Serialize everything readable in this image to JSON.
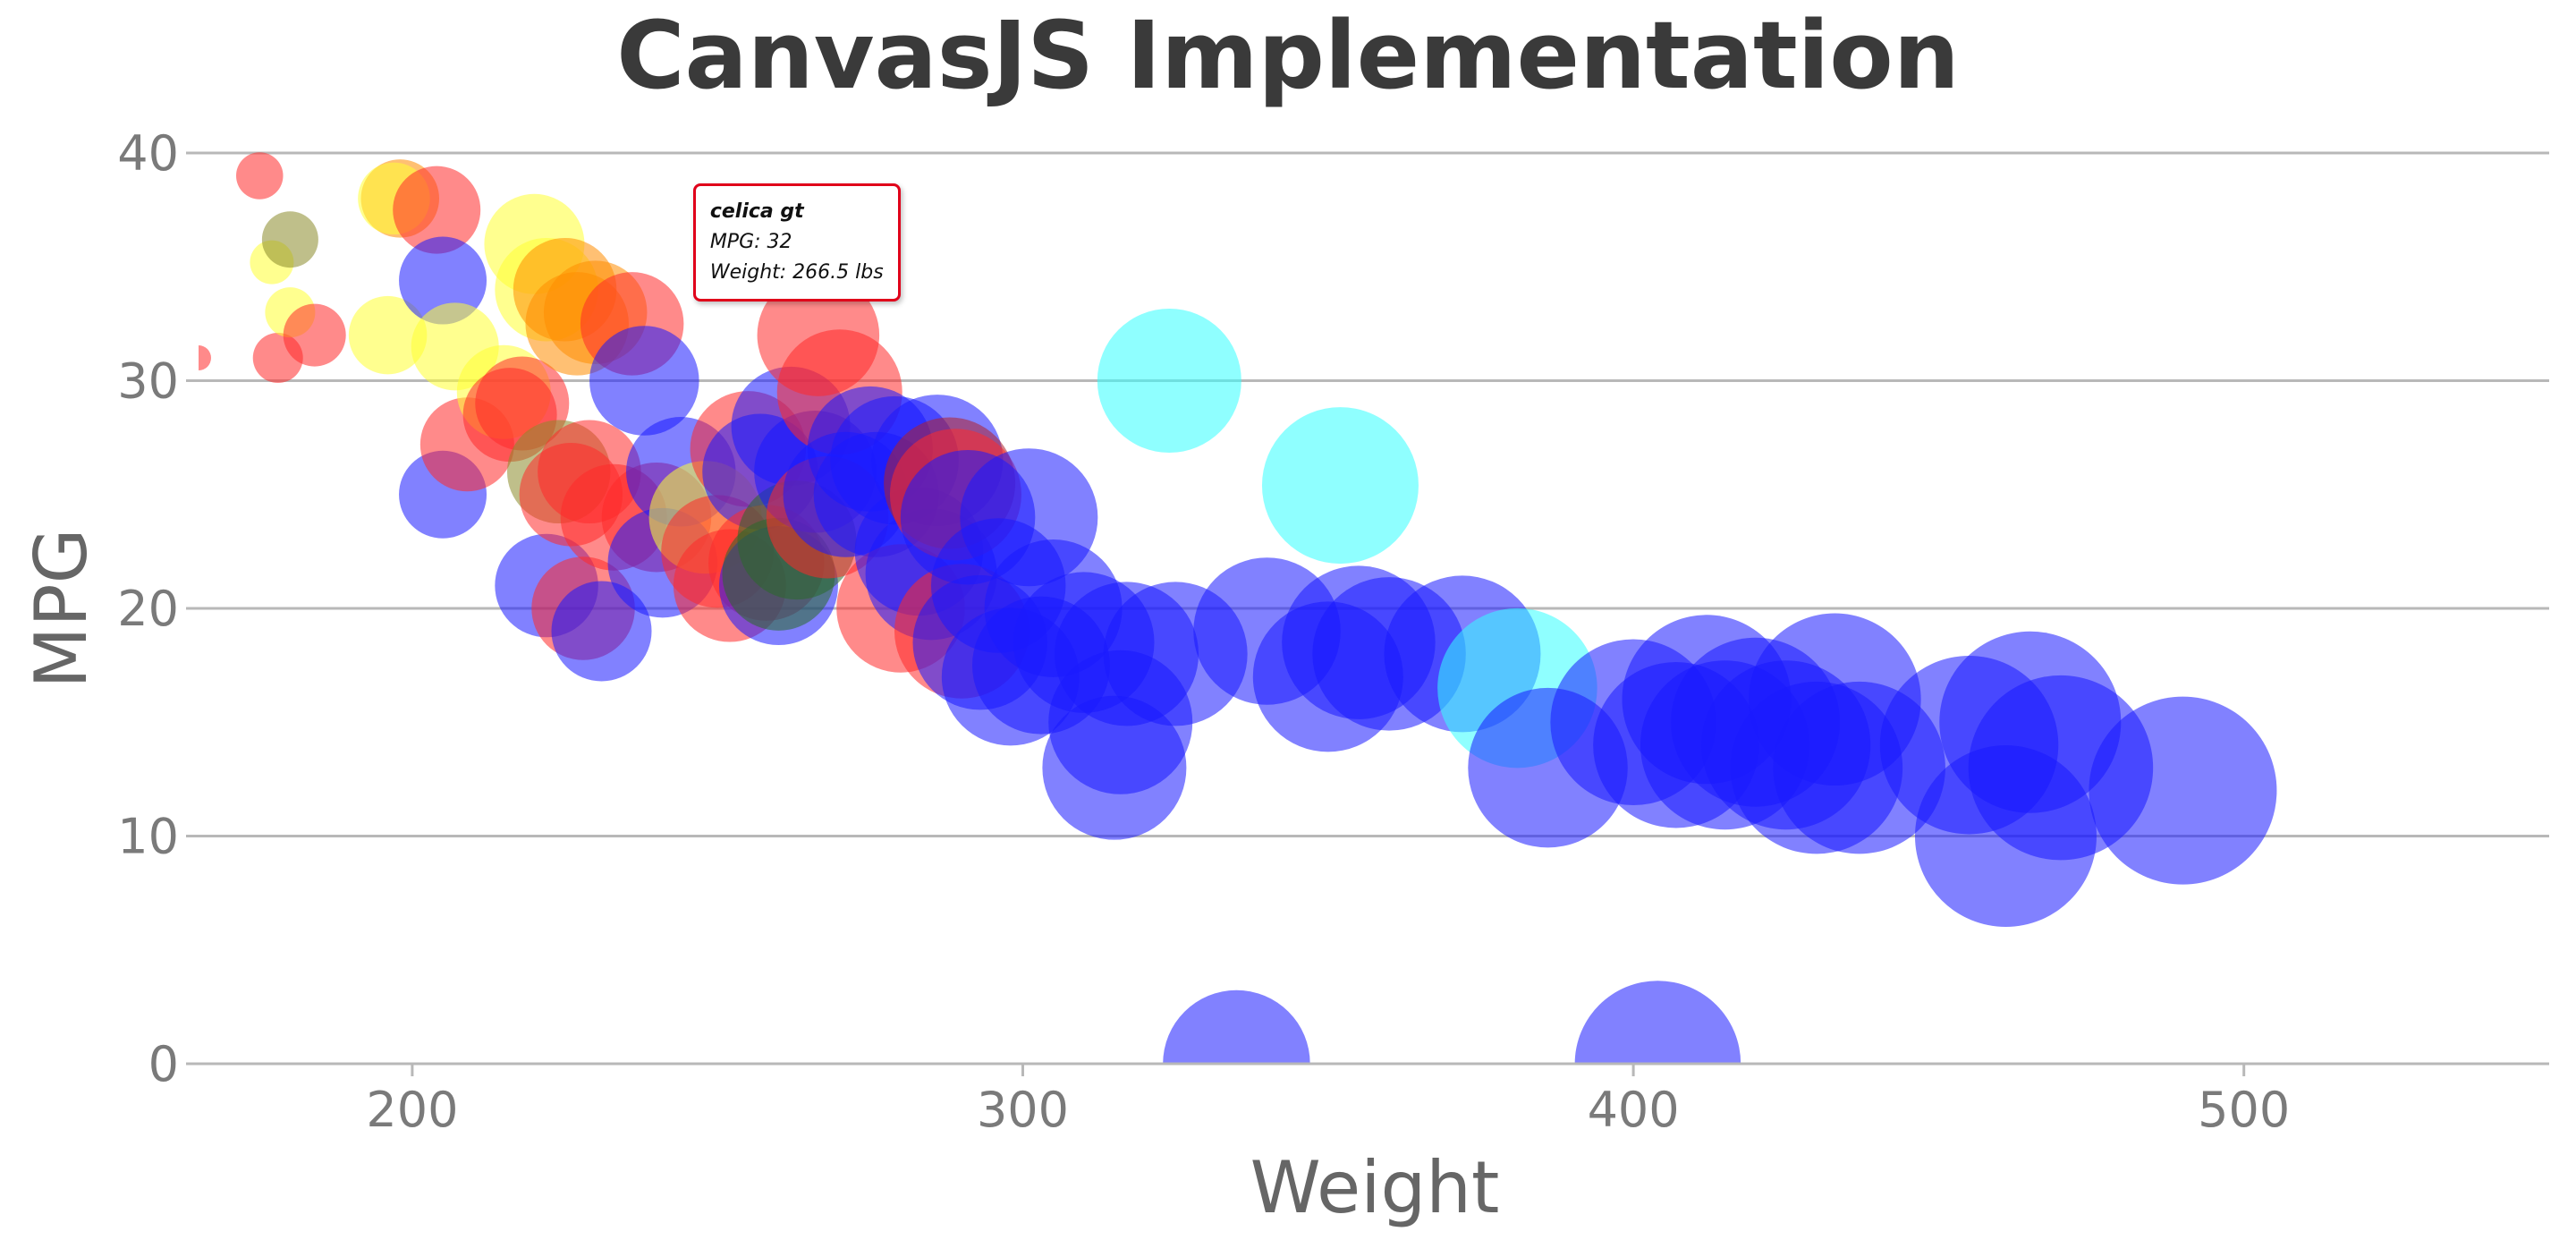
{
  "chart_data": {
    "type": "bubble",
    "title": "CanvasJS Implementation",
    "xlabel": "Weight",
    "ylabel": "MPG",
    "xlim": [
      165,
      550
    ],
    "ylim": [
      0,
      40
    ],
    "xticks": [
      200,
      300,
      400,
      500
    ],
    "yticks": [
      0,
      10,
      20,
      30,
      40
    ],
    "grid": "horizontal",
    "colors": {
      "red": "#ff2a2a",
      "yellow": "#ffff33",
      "orange": "#ff8c00",
      "blue": "#1a1aff",
      "cyan": "#33ffff",
      "olive": "#8a8a2a",
      "green": "#2a6a2a",
      "darkred": "#b0202a"
    },
    "points": [
      {
        "x": 165,
        "y": 31,
        "s": 0.8,
        "c": "red"
      },
      {
        "x": 175,
        "y": 39,
        "s": 1.5,
        "c": "red"
      },
      {
        "x": 178,
        "y": 31,
        "s": 1.6,
        "c": "red"
      },
      {
        "x": 177,
        "y": 35.2,
        "s": 1.4,
        "c": "yellow"
      },
      {
        "x": 180,
        "y": 33,
        "s": 1.6,
        "c": "yellow"
      },
      {
        "x": 180,
        "y": 36.2,
        "s": 1.8,
        "c": "olive"
      },
      {
        "x": 184,
        "y": 32,
        "s": 2.0,
        "c": "red"
      },
      {
        "x": 196,
        "y": 32,
        "s": 2.5,
        "c": "yellow"
      },
      {
        "x": 198,
        "y": 38,
        "s": 2.5,
        "c": "orange"
      },
      {
        "x": 197,
        "y": 38,
        "s": 2.3,
        "c": "yellow"
      },
      {
        "x": 204,
        "y": 37.5,
        "s": 2.8,
        "c": "red"
      },
      {
        "x": 205,
        "y": 34.4,
        "s": 2.8,
        "c": "blue"
      },
      {
        "x": 205,
        "y": 25,
        "s": 2.8,
        "c": "blue"
      },
      {
        "x": 207,
        "y": 31.5,
        "s": 2.8,
        "c": "yellow"
      },
      {
        "x": 209,
        "y": 27.2,
        "s": 3.0,
        "c": "red"
      },
      {
        "x": 215,
        "y": 29.5,
        "s": 3.0,
        "c": "yellow"
      },
      {
        "x": 216,
        "y": 28.5,
        "s": 3.0,
        "c": "red"
      },
      {
        "x": 218,
        "y": 29,
        "s": 3.0,
        "c": "red"
      },
      {
        "x": 220,
        "y": 36,
        "s": 3.2,
        "c": "yellow"
      },
      {
        "x": 222,
        "y": 34,
        "s": 3.3,
        "c": "yellow"
      },
      {
        "x": 222,
        "y": 21,
        "s": 3.3,
        "c": "blue"
      },
      {
        "x": 224,
        "y": 26,
        "s": 3.3,
        "c": "olive"
      },
      {
        "x": 225,
        "y": 34,
        "s": 3.3,
        "c": "orange"
      },
      {
        "x": 226,
        "y": 25,
        "s": 3.3,
        "c": "red"
      },
      {
        "x": 227,
        "y": 32.5,
        "s": 3.3,
        "c": "orange"
      },
      {
        "x": 228,
        "y": 20,
        "s": 3.3,
        "c": "red"
      },
      {
        "x": 229,
        "y": 26,
        "s": 3.3,
        "c": "red"
      },
      {
        "x": 230,
        "y": 33,
        "s": 3.3,
        "c": "orange"
      },
      {
        "x": 231,
        "y": 19,
        "s": 3.2,
        "c": "blue"
      },
      {
        "x": 233,
        "y": 24,
        "s": 3.4,
        "c": "red"
      },
      {
        "x": 236,
        "y": 32.5,
        "s": 3.3,
        "c": "red"
      },
      {
        "x": 238,
        "y": 30,
        "s": 3.5,
        "c": "blue"
      },
      {
        "x": 240,
        "y": 24,
        "s": 3.5,
        "c": "red"
      },
      {
        "x": 241,
        "y": 22,
        "s": 3.5,
        "c": "blue"
      },
      {
        "x": 244,
        "y": 26,
        "s": 3.5,
        "c": "blue"
      },
      {
        "x": 248,
        "y": 24,
        "s": 3.6,
        "c": "yellow"
      },
      {
        "x": 250,
        "y": 22.5,
        "s": 3.6,
        "c": "red"
      },
      {
        "x": 252,
        "y": 21,
        "s": 3.6,
        "c": "red"
      },
      {
        "x": 255,
        "y": 27,
        "s": 3.7,
        "c": "red"
      },
      {
        "x": 257,
        "y": 26,
        "s": 3.7,
        "c": "blue"
      },
      {
        "x": 258,
        "y": 22,
        "s": 3.7,
        "c": "red"
      },
      {
        "x": 260,
        "y": 21,
        "s": 3.8,
        "c": "blue"
      },
      {
        "x": 260,
        "y": 21.5,
        "s": 3.6,
        "c": "green"
      },
      {
        "x": 262,
        "y": 28,
        "s": 3.8,
        "c": "blue"
      },
      {
        "x": 263,
        "y": 23,
        "s": 3.8,
        "c": "green"
      },
      {
        "x": 266.5,
        "y": 32,
        "s": 3.9,
        "c": "red"
      },
      {
        "x": 266,
        "y": 26,
        "s": 3.9,
        "c": "blue"
      },
      {
        "x": 268,
        "y": 24,
        "s": 3.9,
        "c": "red"
      },
      {
        "x": 270,
        "y": 29.5,
        "s": 4.0,
        "c": "red"
      },
      {
        "x": 271,
        "y": 25,
        "s": 4.0,
        "c": "blue"
      },
      {
        "x": 275,
        "y": 27,
        "s": 4.0,
        "c": "blue"
      },
      {
        "x": 276,
        "y": 25,
        "s": 4.0,
        "c": "blue"
      },
      {
        "x": 279,
        "y": 26.5,
        "s": 4.1,
        "c": "blue"
      },
      {
        "x": 280,
        "y": 20,
        "s": 4.1,
        "c": "red"
      },
      {
        "x": 283,
        "y": 22.5,
        "s": 4.1,
        "c": "blue"
      },
      {
        "x": 285,
        "y": 21.5,
        "s": 4.2,
        "c": "blue"
      },
      {
        "x": 286,
        "y": 26.5,
        "s": 4.2,
        "c": "blue"
      },
      {
        "x": 288,
        "y": 25.5,
        "s": 4.2,
        "c": "darkred"
      },
      {
        "x": 289,
        "y": 25,
        "s": 4.2,
        "c": "red"
      },
      {
        "x": 290,
        "y": 19,
        "s": 4.3,
        "c": "red"
      },
      {
        "x": 291,
        "y": 24,
        "s": 4.3,
        "c": "blue"
      },
      {
        "x": 293,
        "y": 18.5,
        "s": 4.3,
        "c": "blue"
      },
      {
        "x": 296,
        "y": 21,
        "s": 4.3,
        "c": "blue"
      },
      {
        "x": 298,
        "y": 17,
        "s": 4.4,
        "c": "blue"
      },
      {
        "x": 301,
        "y": 24,
        "s": 4.4,
        "c": "blue"
      },
      {
        "x": 303,
        "y": 17.5,
        "s": 4.4,
        "c": "blue"
      },
      {
        "x": 305,
        "y": 20,
        "s": 4.4,
        "c": "blue"
      },
      {
        "x": 310,
        "y": 18.5,
        "s": 4.5,
        "c": "blue"
      },
      {
        "x": 315,
        "y": 13,
        "s": 4.6,
        "c": "blue"
      },
      {
        "x": 316,
        "y": 15,
        "s": 4.6,
        "c": "blue"
      },
      {
        "x": 317,
        "y": 18,
        "s": 4.6,
        "c": "blue"
      },
      {
        "x": 324,
        "y": 30,
        "s": 4.6,
        "c": "cyan"
      },
      {
        "x": 325,
        "y": 18,
        "s": 4.6,
        "c": "blue"
      },
      {
        "x": 335,
        "y": 0,
        "s": 4.7,
        "c": "blue"
      },
      {
        "x": 340,
        "y": 19,
        "s": 4.7,
        "c": "blue"
      },
      {
        "x": 350,
        "y": 17,
        "s": 4.8,
        "c": "blue"
      },
      {
        "x": 352,
        "y": 25.4,
        "s": 5.0,
        "c": "cyan"
      },
      {
        "x": 355,
        "y": 18.5,
        "s": 4.9,
        "c": "blue"
      },
      {
        "x": 360,
        "y": 18,
        "s": 4.9,
        "c": "blue"
      },
      {
        "x": 372,
        "y": 18,
        "s": 5.0,
        "c": "blue"
      },
      {
        "x": 381,
        "y": 16.5,
        "s": 5.1,
        "c": "cyan"
      },
      {
        "x": 386,
        "y": 13,
        "s": 5.1,
        "c": "blue"
      },
      {
        "x": 400,
        "y": 15,
        "s": 5.3,
        "c": "blue"
      },
      {
        "x": 404,
        "y": 0,
        "s": 5.3,
        "c": "blue"
      },
      {
        "x": 407,
        "y": 14,
        "s": 5.3,
        "c": "blue"
      },
      {
        "x": 412,
        "y": 16,
        "s": 5.4,
        "c": "blue"
      },
      {
        "x": 415,
        "y": 14,
        "s": 5.4,
        "c": "blue"
      },
      {
        "x": 420,
        "y": 15,
        "s": 5.4,
        "c": "blue"
      },
      {
        "x": 425,
        "y": 14,
        "s": 5.4,
        "c": "blue"
      },
      {
        "x": 430,
        "y": 13,
        "s": 5.5,
        "c": "blue"
      },
      {
        "x": 433,
        "y": 16,
        "s": 5.5,
        "c": "blue"
      },
      {
        "x": 437,
        "y": 13,
        "s": 5.5,
        "c": "blue"
      },
      {
        "x": 455,
        "y": 14,
        "s": 5.7,
        "c": "blue"
      },
      {
        "x": 461,
        "y": 10,
        "s": 5.8,
        "c": "blue"
      },
      {
        "x": 465,
        "y": 15,
        "s": 5.8,
        "c": "blue"
      },
      {
        "x": 470,
        "y": 13,
        "s": 5.9,
        "c": "blue"
      },
      {
        "x": 490,
        "y": 12,
        "s": 6.0,
        "c": "blue"
      }
    ],
    "tooltip": {
      "name": "celica gt",
      "line1": "MPG: 32",
      "line2": "Weight: 266.5 lbs"
    }
  }
}
